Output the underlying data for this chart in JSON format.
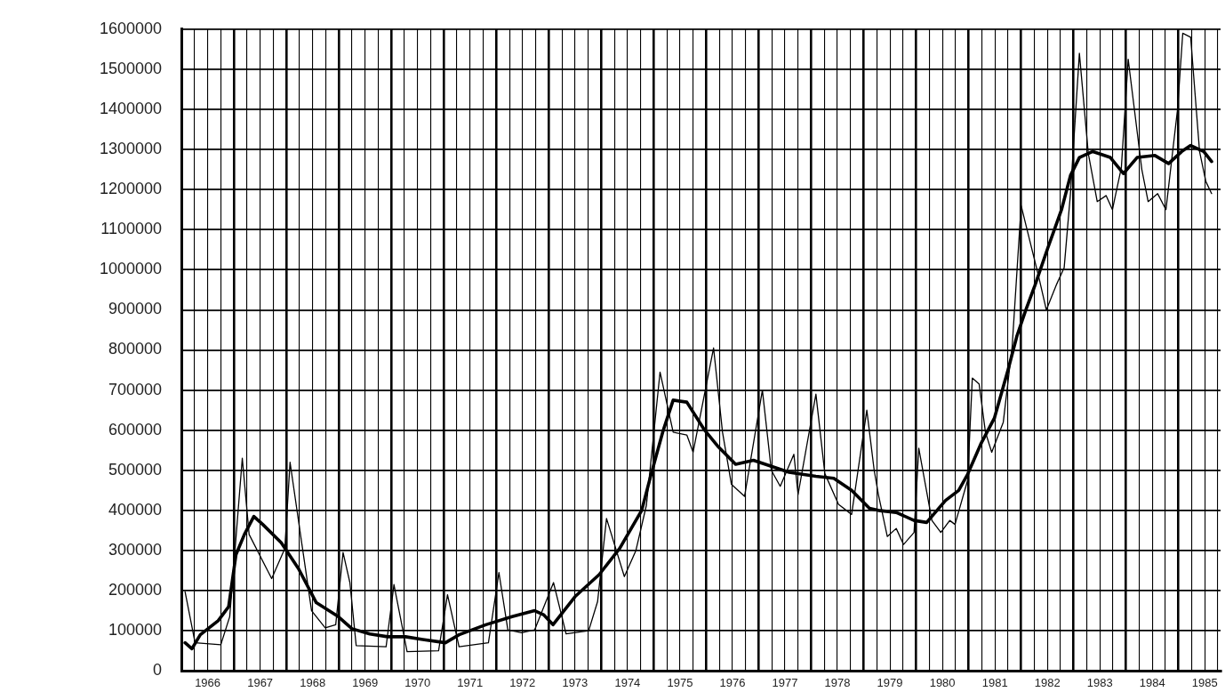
{
  "chart_data": {
    "type": "line",
    "series": [
      {
        "color": "#000000",
        "x": [
          1966.07,
          1966.26,
          1966.75,
          1966.92,
          1967.16,
          1967.29,
          1967.72,
          1967.97,
          1968.07,
          1968.23,
          1968.48,
          1968.74,
          1968.94,
          1969.08,
          1969.21,
          1969.33,
          1969.9,
          1970.05,
          1970.3,
          1970.9,
          1971.07,
          1971.29,
          1971.85,
          1972.05,
          1972.22,
          1972.48,
          1972.73,
          1973.09,
          1973.33,
          1973.76,
          1973.93,
          1974.1,
          1974.44,
          1974.66,
          1974.86,
          1975.12,
          1975.37,
          1975.63,
          1975.75,
          1976.14,
          1976.31,
          1976.48,
          1976.73,
          1977.07,
          1977.24,
          1977.41,
          1977.67,
          1977.75,
          1978.09,
          1978.26,
          1978.52,
          1978.77,
          1979.06,
          1979.2,
          1979.28,
          1979.45,
          1979.62,
          1979.76,
          1979.96,
          1980.05,
          1980.3,
          1980.47,
          1980.64,
          1980.74,
          1980.98,
          1981.07,
          1981.2,
          1981.32,
          1981.44,
          1981.66,
          1981.83,
          1982.0,
          1982.34,
          1982.48,
          1982.68,
          1982.82,
          1982.94,
          1983.11,
          1983.28,
          1983.45,
          1983.62,
          1983.74,
          1983.91,
          1984.04,
          1984.3,
          1984.42,
          1984.6,
          1984.76,
          1984.98,
          1985.08,
          1985.23,
          1985.4,
          1985.52,
          1985.63
        ],
        "values": [
          197000,
          70000,
          65000,
          135000,
          530000,
          340000,
          230000,
          305000,
          520000,
          375000,
          150000,
          107000,
          115000,
          295000,
          220000,
          63000,
          60000,
          215000,
          48000,
          50000,
          190000,
          60000,
          70000,
          245000,
          102000,
          95000,
          102000,
          220000,
          92000,
          100000,
          173000,
          380000,
          235000,
          300000,
          413000,
          745000,
          595000,
          588000,
          545000,
          805000,
          595000,
          465000,
          435000,
          700000,
          500000,
          460000,
          540000,
          440000,
          690000,
          492000,
          415000,
          390000,
          650000,
          500000,
          440000,
          335000,
          355000,
          315000,
          345000,
          555000,
          375000,
          345000,
          375000,
          365000,
          475000,
          730000,
          715000,
          595000,
          545000,
          620000,
          810000,
          1160000,
          980000,
          900000,
          965000,
          1005000,
          1190000,
          1540000,
          1290000,
          1170000,
          1185000,
          1150000,
          1255000,
          1525000,
          1250000,
          1170000,
          1190000,
          1150000,
          1400000,
          1590000,
          1580000,
          1295000,
          1220000,
          1190000
        ]
      },
      {
        "color": "#000000",
        "x": [
          1966.07,
          1966.2,
          1966.36,
          1966.7,
          1966.9,
          1967.04,
          1967.2,
          1967.38,
          1967.55,
          1967.9,
          1968.23,
          1968.57,
          1968.99,
          1969.25,
          1969.59,
          1969.93,
          1970.27,
          1970.6,
          1971.03,
          1971.29,
          1971.8,
          1972.3,
          1972.73,
          1972.9,
          1973.08,
          1973.5,
          1973.96,
          1974.35,
          1974.77,
          1974.95,
          1975.17,
          1975.37,
          1975.63,
          1975.97,
          1976.22,
          1976.56,
          1976.9,
          1977.24,
          1977.58,
          1978.09,
          1978.43,
          1978.77,
          1979.11,
          1979.28,
          1979.62,
          1979.96,
          1980.2,
          1980.56,
          1980.81,
          1980.98,
          1981.23,
          1981.49,
          1981.75,
          1981.92,
          1982.09,
          1982.26,
          1982.51,
          1982.77,
          1982.94,
          1983.11,
          1983.36,
          1983.7,
          1983.95,
          1984.21,
          1984.55,
          1984.81,
          1985.06,
          1985.23,
          1985.48,
          1985.63
        ],
        "values": [
          70000,
          55000,
          90000,
          125000,
          160000,
          290000,
          340000,
          385000,
          365000,
          320000,
          255000,
          170000,
          135000,
          105000,
          92000,
          85000,
          85000,
          78000,
          70000,
          90000,
          115000,
          135000,
          150000,
          140000,
          115000,
          185000,
          240000,
          305000,
          400000,
          490000,
          595000,
          675000,
          670000,
          600000,
          560000,
          515000,
          525000,
          510000,
          495000,
          485000,
          480000,
          450000,
          405000,
          400000,
          395000,
          375000,
          370000,
          425000,
          450000,
          490000,
          565000,
          630000,
          750000,
          835000,
          900000,
          960000,
          1055000,
          1150000,
          1235000,
          1280000,
          1295000,
          1280000,
          1240000,
          1280000,
          1285000,
          1265000,
          1295000,
          1310000,
          1295000,
          1270000
        ]
      }
    ],
    "xlim": [
      1966,
      1985.8
    ],
    "xticks": [
      {
        "value": 1966,
        "label": null
      },
      {
        "value": 1966.25,
        "label": null
      },
      {
        "value": 1966.5,
        "label": "1966"
      },
      {
        "value": 1966.75,
        "label": null
      },
      {
        "value": 1967,
        "label": null
      },
      {
        "value": 1967.25,
        "label": null
      },
      {
        "value": 1967.5,
        "label": "1967"
      },
      {
        "value": 1967.75,
        "label": null
      },
      {
        "value": 1968,
        "label": null
      },
      {
        "value": 1968.25,
        "label": null
      },
      {
        "value": 1968.5,
        "label": "1968"
      },
      {
        "value": 1968.75,
        "label": null
      },
      {
        "value": 1969,
        "label": null
      },
      {
        "value": 1969.25,
        "label": null
      },
      {
        "value": 1969.5,
        "label": "1969"
      },
      {
        "value": 1969.75,
        "label": null
      },
      {
        "value": 1970,
        "label": null
      },
      {
        "value": 1970.25,
        "label": null
      },
      {
        "value": 1970.5,
        "label": "1970"
      },
      {
        "value": 1970.75,
        "label": null
      },
      {
        "value": 1971,
        "label": null
      },
      {
        "value": 1971.25,
        "label": null
      },
      {
        "value": 1971.5,
        "label": "1971"
      },
      {
        "value": 1971.75,
        "label": null
      },
      {
        "value": 1972,
        "label": null
      },
      {
        "value": 1972.25,
        "label": null
      },
      {
        "value": 1972.5,
        "label": "1972"
      },
      {
        "value": 1972.75,
        "label": null
      },
      {
        "value": 1973,
        "label": null
      },
      {
        "value": 1973.25,
        "label": null
      },
      {
        "value": 1973.5,
        "label": "1973"
      },
      {
        "value": 1973.75,
        "label": null
      },
      {
        "value": 1974,
        "label": null
      },
      {
        "value": 1974.25,
        "label": null
      },
      {
        "value": 1974.5,
        "label": "1974"
      },
      {
        "value": 1974.75,
        "label": null
      },
      {
        "value": 1975,
        "label": null
      },
      {
        "value": 1975.25,
        "label": null
      },
      {
        "value": 1975.5,
        "label": "1975"
      },
      {
        "value": 1975.75,
        "label": null
      },
      {
        "value": 1976,
        "label": null
      },
      {
        "value": 1976.25,
        "label": null
      },
      {
        "value": 1976.5,
        "label": "1976"
      },
      {
        "value": 1976.75,
        "label": null
      },
      {
        "value": 1977,
        "label": null
      },
      {
        "value": 1977.25,
        "label": null
      },
      {
        "value": 1977.5,
        "label": "1977"
      },
      {
        "value": 1977.75,
        "label": null
      },
      {
        "value": 1978,
        "label": null
      },
      {
        "value": 1978.25,
        "label": null
      },
      {
        "value": 1978.5,
        "label": "1978"
      },
      {
        "value": 1978.75,
        "label": null
      },
      {
        "value": 1979,
        "label": null
      },
      {
        "value": 1979.25,
        "label": null
      },
      {
        "value": 1979.5,
        "label": "1979"
      },
      {
        "value": 1979.75,
        "label": null
      },
      {
        "value": 1980,
        "label": null
      },
      {
        "value": 1980.25,
        "label": null
      },
      {
        "value": 1980.5,
        "label": "1980"
      },
      {
        "value": 1980.75,
        "label": null
      },
      {
        "value": 1981,
        "label": null
      },
      {
        "value": 1981.25,
        "label": null
      },
      {
        "value": 1981.5,
        "label": "1981"
      },
      {
        "value": 1981.75,
        "label": null
      },
      {
        "value": 1982,
        "label": null
      },
      {
        "value": 1982.25,
        "label": null
      },
      {
        "value": 1982.5,
        "label": "1982"
      },
      {
        "value": 1982.75,
        "label": null
      },
      {
        "value": 1983,
        "label": null
      },
      {
        "value": 1983.25,
        "label": null
      },
      {
        "value": 1983.5,
        "label": "1983"
      },
      {
        "value": 1983.75,
        "label": null
      },
      {
        "value": 1984,
        "label": null
      },
      {
        "value": 1984.25,
        "label": null
      },
      {
        "value": 1984.5,
        "label": "1984"
      },
      {
        "value": 1984.75,
        "label": null
      },
      {
        "value": 1985,
        "label": null
      },
      {
        "value": 1985.25,
        "label": null
      },
      {
        "value": 1985.5,
        "label": "1985"
      },
      {
        "value": 1985.75,
        "label": null
      }
    ],
    "ylim": [
      0,
      1600000
    ],
    "yticks": [
      0,
      100000,
      200000,
      300000,
      400000,
      500000,
      600000,
      700000,
      800000,
      900000,
      1000000,
      1100000,
      1200000,
      1300000,
      1400000,
      1500000,
      1600000
    ],
    "grid": true,
    "legend": false,
    "marker": "none",
    "line_style": "solid"
  }
}
